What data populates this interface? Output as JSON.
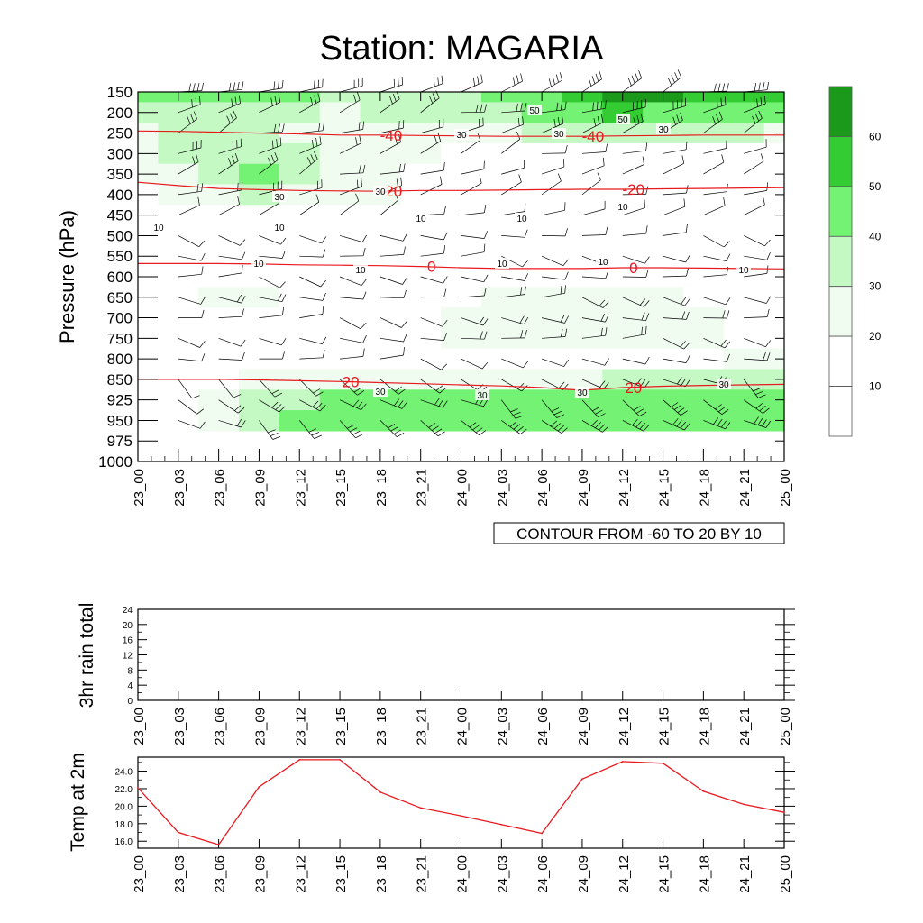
{
  "title": "Station: MAGARIA",
  "colors": {
    "frame": "#000000",
    "isotherm": "#e8191f",
    "temp_line": "#e8191f",
    "green_levels": [
      "#ffffff",
      "#f0fcf0",
      "#c4f9c4",
      "#73f273",
      "#33cc33",
      "#1a991a"
    ]
  },
  "chart_data": [
    {
      "type": "heatmap",
      "name": "wind-temperature-cross-section",
      "ylabel": "Pressure (hPa)",
      "yticks": [
        "150",
        "200",
        "250",
        "300",
        "350",
        "400",
        "450",
        "500",
        "550",
        "600",
        "650",
        "700",
        "750",
        "800",
        "850",
        "925",
        "950",
        "975",
        "1000"
      ],
      "xticks": [
        "23_00",
        "23_03",
        "23_06",
        "23_09",
        "23_12",
        "23_15",
        "23_18",
        "23_21",
        "24_00",
        "24_03",
        "24_06",
        "24_09",
        "24_12",
        "24_15",
        "24_18",
        "24_21",
        "25_00"
      ],
      "contour_note": "CONTOUR FROM -60 TO 20 BY 10",
      "colorbar": {
        "levels": [
          "10",
          "20",
          "30",
          "40",
          "50",
          "60"
        ]
      },
      "wind_speed_grid": [
        [
          40,
          45,
          45,
          40,
          40,
          35,
          35,
          35,
          35,
          40,
          45,
          55,
          60,
          60,
          55,
          50,
          50
        ],
        [
          30,
          35,
          35,
          35,
          30,
          20,
          30,
          30,
          30,
          35,
          40,
          45,
          50,
          45,
          40,
          40,
          40
        ],
        [
          25,
          30,
          30,
          30,
          25,
          20,
          25,
          25,
          25,
          25,
          30,
          30,
          35,
          30,
          30,
          30,
          25
        ],
        [
          25,
          30,
          30,
          35,
          30,
          20,
          25,
          20,
          15,
          15,
          15,
          15,
          15,
          15,
          15,
          15,
          15
        ],
        [
          20,
          25,
          30,
          40,
          30,
          20,
          25,
          15,
          10,
          10,
          10,
          10,
          10,
          10,
          10,
          10,
          10
        ],
        [
          15,
          20,
          25,
          30,
          25,
          20,
          20,
          10,
          10,
          10,
          10,
          10,
          10,
          10,
          10,
          10,
          10
        ],
        [
          10,
          10,
          10,
          10,
          10,
          10,
          10,
          10,
          10,
          10,
          10,
          10,
          10,
          10,
          10,
          10,
          10
        ],
        [
          10,
          10,
          10,
          10,
          10,
          10,
          10,
          10,
          10,
          10,
          10,
          10,
          10,
          10,
          10,
          10,
          10
        ],
        [
          10,
          10,
          10,
          10,
          10,
          10,
          10,
          10,
          10,
          10,
          10,
          10,
          10,
          10,
          10,
          10,
          10
        ],
        [
          10,
          10,
          10,
          10,
          10,
          10,
          10,
          10,
          10,
          10,
          10,
          10,
          10,
          10,
          10,
          10,
          10
        ],
        [
          15,
          15,
          20,
          20,
          15,
          10,
          10,
          10,
          15,
          20,
          20,
          20,
          20,
          20,
          15,
          15,
          15
        ],
        [
          15,
          15,
          15,
          15,
          15,
          10,
          10,
          15,
          20,
          20,
          20,
          20,
          20,
          20,
          20,
          15,
          15
        ],
        [
          15,
          15,
          15,
          15,
          15,
          10,
          10,
          15,
          20,
          20,
          20,
          20,
          20,
          20,
          20,
          15,
          15
        ],
        [
          15,
          10,
          10,
          10,
          10,
          10,
          10,
          10,
          15,
          15,
          15,
          15,
          15,
          15,
          15,
          20,
          20
        ],
        [
          15,
          15,
          15,
          20,
          25,
          25,
          25,
          25,
          25,
          25,
          25,
          25,
          30,
          30,
          30,
          30,
          30
        ],
        [
          15,
          15,
          20,
          30,
          35,
          40,
          40,
          40,
          40,
          40,
          40,
          40,
          40,
          45,
          40,
          40,
          40
        ],
        [
          15,
          15,
          20,
          35,
          40,
          45,
          45,
          45,
          45,
          45,
          45,
          45,
          45,
          45,
          45,
          45,
          45
        ]
      ],
      "isotherms": [
        {
          "label": "-40",
          "p": [
            245,
            246,
            248,
            250,
            252,
            255,
            255,
            256,
            257,
            258,
            258,
            258,
            257,
            256,
            255,
            255,
            255
          ]
        },
        {
          "label": "-20",
          "p": [
            370,
            378,
            385,
            388,
            390,
            391,
            392,
            390,
            390,
            389,
            388,
            387,
            387,
            386,
            385,
            384,
            383
          ]
        },
        {
          "label": "0",
          "p": [
            568,
            568,
            568,
            569,
            571,
            572,
            573,
            575,
            578,
            580,
            580,
            580,
            578,
            578,
            579,
            580,
            581
          ]
        },
        {
          "label": "20",
          "p": [
            850,
            850,
            850,
            852,
            855,
            858,
            862,
            866,
            870,
            874,
            880,
            890,
            880,
            875,
            872,
            870,
            868
          ]
        }
      ],
      "inline_labels": [
        "50",
        "50",
        "30",
        "30",
        "30",
        "30",
        "30",
        "10",
        "10",
        "10",
        "10",
        "10",
        "10",
        "10",
        "10",
        "10",
        "10",
        "30",
        "30",
        "30",
        "30"
      ]
    },
    {
      "type": "line",
      "name": "rain-3hr",
      "ylabel": "3hr rain total",
      "yticks": [
        "0",
        "4",
        "8",
        "12",
        "16",
        "20",
        "24"
      ],
      "ylim": [
        0,
        24
      ],
      "xticks": [
        "23_00",
        "23_03",
        "23_06",
        "23_09",
        "23_12",
        "23_15",
        "23_18",
        "23_21",
        "24_00",
        "24_03",
        "24_06",
        "24_09",
        "24_12",
        "24_15",
        "24_18",
        "24_21",
        "25_00"
      ],
      "values": []
    },
    {
      "type": "line",
      "name": "temp-2m",
      "ylabel": "Temp at 2m",
      "yticks": [
        "16.0",
        "18.0",
        "20.0",
        "22.0",
        "24.0"
      ],
      "ylim": [
        15.2,
        25.6
      ],
      "xticks": [
        "23_00",
        "23_03",
        "23_06",
        "23_09",
        "23_12",
        "23_15",
        "23_18",
        "23_21",
        "24_00",
        "24_03",
        "24_06",
        "24_09",
        "24_12",
        "24_15",
        "24_18",
        "24_21",
        "25_00"
      ],
      "values": [
        22.1,
        17.0,
        15.6,
        22.2,
        25.3,
        25.3,
        21.6,
        19.8,
        18.9,
        17.9,
        16.9,
        23.1,
        25.1,
        24.9,
        21.7,
        20.2,
        19.3
      ]
    }
  ]
}
